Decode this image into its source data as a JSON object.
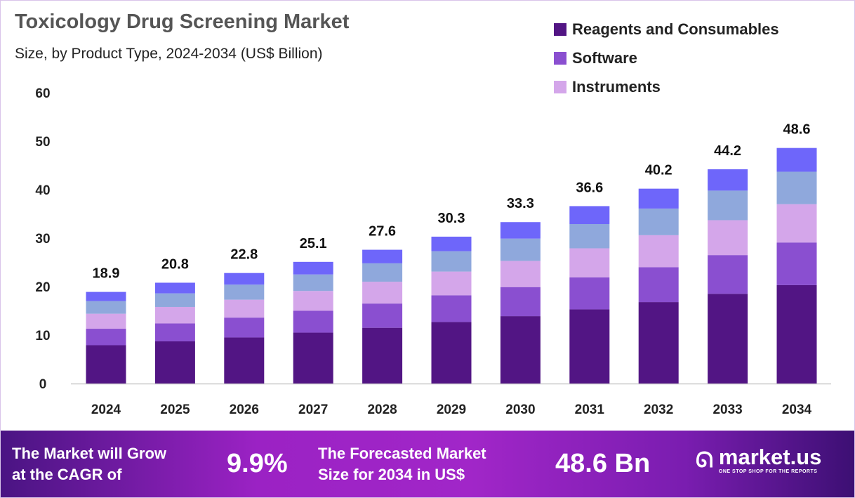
{
  "header": {
    "title": "Toxicology Drug Screening Market",
    "subtitle": "Size, by Product Type, 2024-2034 (US$ Billion)"
  },
  "chart_data": {
    "type": "bar",
    "stacked": true,
    "categories": [
      "2024",
      "2025",
      "2026",
      "2027",
      "2028",
      "2029",
      "2030",
      "2031",
      "2032",
      "2033",
      "2034"
    ],
    "totals": [
      18.9,
      20.8,
      22.8,
      25.1,
      27.6,
      30.3,
      33.3,
      36.6,
      40.2,
      44.2,
      48.6
    ],
    "series": [
      {
        "name": "Reagents and Consumables",
        "color": "#521584",
        "values": [
          7.9,
          8.7,
          9.5,
          10.5,
          11.5,
          12.7,
          13.9,
          15.3,
          16.8,
          18.5,
          20.3
        ]
      },
      {
        "name": "Software",
        "color": "#8a4fd0",
        "values": [
          3.4,
          3.7,
          4.1,
          4.5,
          5.0,
          5.5,
          6.0,
          6.6,
          7.2,
          8.0,
          8.8
        ]
      },
      {
        "name": "Instruments",
        "color": "#d4a6ea",
        "values": [
          3.1,
          3.4,
          3.7,
          4.1,
          4.5,
          4.9,
          5.4,
          6.0,
          6.6,
          7.2,
          7.9
        ]
      },
      {
        "color": "#8fa8dc",
        "values": [
          2.6,
          2.8,
          3.1,
          3.4,
          3.8,
          4.2,
          4.6,
          5.0,
          5.5,
          6.1,
          6.7
        ]
      },
      {
        "color": "#6e66fa",
        "values": [
          1.9,
          2.2,
          2.4,
          2.6,
          2.8,
          3.0,
          3.4,
          3.7,
          4.1,
          4.4,
          4.9
        ]
      }
    ],
    "ylim": [
      0,
      60
    ],
    "yticks": [
      0,
      10,
      20,
      30,
      40,
      50,
      60
    ],
    "grid": false,
    "legend_position": "top-right"
  },
  "footer": {
    "cagr_label": "The Market will Grow at the CAGR of",
    "cagr_line1": "The Market will Grow",
    "cagr_line2": "at the CAGR of",
    "cagr_value": "9.9%",
    "forecast_line1": "The Forecasted Market",
    "forecast_line2": "Size for 2034 in US$",
    "forecast_value": "48.6 Bn",
    "logo_name": "market.us",
    "logo_tagline": "ONE STOP SHOP FOR THE REPORTS"
  }
}
